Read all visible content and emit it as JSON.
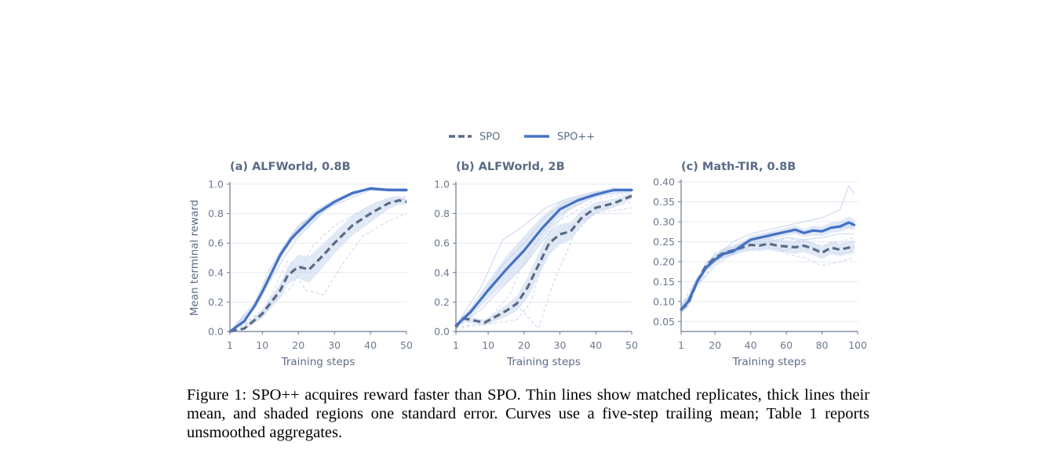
{
  "legend": [
    {
      "name": "SPO",
      "style": "dashed"
    },
    {
      "name": "SPO++",
      "style": "solid"
    }
  ],
  "colors": {
    "spo": "#5b6b85",
    "spopp": "#4472c4",
    "band": "#c9d6ef",
    "replicate": "#c2cfeb",
    "axis": "#6b7a90",
    "grid": "#e6e9ef"
  },
  "caption": {
    "label": "Figure 1:",
    "text": "SPO++ acquires reward faster than SPO. Thin lines show matched replicates, thick lines their mean, and shaded regions one standard error. Curves use a five-step trailing mean; Table 1 reports unsmoothed aggregates."
  },
  "chart_data": [
    {
      "type": "line",
      "title": "(a) ALFWorld, 0.8B",
      "xlabel": "Training steps",
      "ylabel": "Mean terminal reward",
      "xlim": [
        1,
        50
      ],
      "ylim": [
        0,
        1.0
      ],
      "xticks": [
        1,
        10,
        20,
        30,
        40,
        50
      ],
      "yticks": [
        0.0,
        0.2,
        0.4,
        0.6,
        0.8,
        1.0
      ],
      "series": [
        {
          "name": "SPO",
          "style": "dashed",
          "x": [
            1,
            5,
            10,
            15,
            17,
            20,
            23,
            27,
            30,
            35,
            40,
            45,
            48,
            50
          ],
          "y": [
            0.0,
            0.02,
            0.12,
            0.28,
            0.38,
            0.44,
            0.42,
            0.52,
            0.6,
            0.72,
            0.8,
            0.87,
            0.89,
            0.88
          ],
          "se_lower": [
            0.0,
            0.01,
            0.09,
            0.23,
            0.32,
            0.36,
            0.33,
            0.44,
            0.53,
            0.65,
            0.74,
            0.83,
            0.86,
            0.86
          ],
          "se_upper": [
            0.0,
            0.03,
            0.15,
            0.33,
            0.44,
            0.52,
            0.51,
            0.6,
            0.67,
            0.79,
            0.86,
            0.91,
            0.92,
            0.9
          ]
        },
        {
          "name": "SPO++",
          "style": "solid",
          "x": [
            1,
            5,
            8,
            10,
            12,
            15,
            18,
            20,
            25,
            30,
            35,
            40,
            45,
            48,
            50
          ],
          "y": [
            0.0,
            0.07,
            0.18,
            0.27,
            0.37,
            0.52,
            0.63,
            0.68,
            0.8,
            0.88,
            0.94,
            0.97,
            0.96,
            0.96,
            0.96
          ],
          "se_lower": [
            0.0,
            0.06,
            0.16,
            0.24,
            0.34,
            0.49,
            0.6,
            0.65,
            0.77,
            0.86,
            0.93,
            0.96,
            0.95,
            0.95,
            0.95
          ],
          "se_upper": [
            0.0,
            0.08,
            0.2,
            0.3,
            0.4,
            0.55,
            0.66,
            0.71,
            0.83,
            0.9,
            0.95,
            0.98,
            0.97,
            0.97,
            0.97
          ]
        }
      ],
      "replicates": [
        {
          "of": "SPO",
          "x": [
            1,
            10,
            18,
            22,
            27,
            32,
            38,
            45,
            50
          ],
          "y": [
            0.0,
            0.1,
            0.44,
            0.28,
            0.25,
            0.45,
            0.65,
            0.75,
            0.8
          ]
        },
        {
          "of": "SPO",
          "x": [
            1,
            10,
            18,
            24,
            30,
            36,
            42,
            50
          ],
          "y": [
            0.0,
            0.14,
            0.3,
            0.58,
            0.72,
            0.8,
            0.88,
            0.9
          ]
        },
        {
          "of": "SPO",
          "x": [
            1,
            10,
            17,
            22,
            30,
            40,
            50
          ],
          "y": [
            0.0,
            0.12,
            0.48,
            0.4,
            0.6,
            0.82,
            0.92
          ]
        },
        {
          "of": "SPO++",
          "x": [
            1,
            8,
            12,
            16,
            20,
            28,
            40,
            50
          ],
          "y": [
            0.0,
            0.2,
            0.42,
            0.58,
            0.72,
            0.86,
            0.97,
            0.97
          ]
        },
        {
          "of": "SPO++",
          "x": [
            1,
            8,
            12,
            16,
            20,
            28,
            40,
            50
          ],
          "y": [
            0.0,
            0.16,
            0.34,
            0.5,
            0.64,
            0.84,
            0.96,
            0.95
          ]
        },
        {
          "of": "SPO++",
          "x": [
            1,
            8,
            12,
            18,
            24,
            32,
            40,
            50
          ],
          "y": [
            0.0,
            0.18,
            0.38,
            0.65,
            0.8,
            0.9,
            0.98,
            0.96
          ]
        }
      ]
    },
    {
      "type": "line",
      "title": "(b) ALFWorld, 2B",
      "xlabel": "Training steps",
      "ylabel": "",
      "xlim": [
        1,
        50
      ],
      "ylim": [
        0,
        1.0
      ],
      "xticks": [
        1,
        10,
        20,
        30,
        40,
        50
      ],
      "yticks": [
        0.0,
        0.2,
        0.4,
        0.6,
        0.8,
        1.0
      ],
      "series": [
        {
          "name": "SPO",
          "style": "dashed",
          "x": [
            1,
            3,
            5,
            7,
            9,
            12,
            15,
            18,
            21,
            24,
            27,
            30,
            33,
            36,
            40,
            45,
            50
          ],
          "y": [
            0.03,
            0.09,
            0.08,
            0.07,
            0.06,
            0.1,
            0.14,
            0.19,
            0.3,
            0.45,
            0.6,
            0.66,
            0.68,
            0.77,
            0.84,
            0.87,
            0.92
          ],
          "se_lower": [
            0.02,
            0.07,
            0.06,
            0.05,
            0.04,
            0.07,
            0.1,
            0.14,
            0.23,
            0.37,
            0.52,
            0.59,
            0.62,
            0.72,
            0.8,
            0.84,
            0.9
          ],
          "se_upper": [
            0.04,
            0.11,
            0.1,
            0.09,
            0.08,
            0.13,
            0.18,
            0.24,
            0.37,
            0.53,
            0.68,
            0.73,
            0.74,
            0.82,
            0.88,
            0.9,
            0.94
          ]
        },
        {
          "name": "SPO++",
          "style": "solid",
          "x": [
            1,
            5,
            10,
            15,
            20,
            25,
            30,
            35,
            40,
            45,
            50
          ],
          "y": [
            0.04,
            0.13,
            0.28,
            0.42,
            0.55,
            0.7,
            0.83,
            0.89,
            0.93,
            0.96,
            0.96
          ],
          "se_lower": [
            0.03,
            0.1,
            0.22,
            0.33,
            0.45,
            0.62,
            0.78,
            0.86,
            0.91,
            0.94,
            0.95
          ],
          "se_upper": [
            0.05,
            0.16,
            0.34,
            0.51,
            0.65,
            0.78,
            0.88,
            0.92,
            0.95,
            0.98,
            0.97
          ]
        }
      ],
      "replicates": [
        {
          "of": "SPO",
          "x": [
            1,
            10,
            18,
            22,
            26,
            30,
            35,
            40,
            50
          ],
          "y": [
            0.02,
            0.05,
            0.08,
            0.2,
            0.55,
            0.68,
            0.74,
            0.8,
            0.84
          ]
        },
        {
          "of": "SPO",
          "x": [
            1,
            10,
            18,
            24,
            28,
            34,
            40,
            50
          ],
          "y": [
            0.03,
            0.06,
            0.18,
            0.02,
            0.32,
            0.66,
            0.82,
            0.88
          ]
        },
        {
          "of": "SPO",
          "x": [
            1,
            10,
            16,
            20,
            26,
            32,
            40,
            50
          ],
          "y": [
            0.05,
            0.08,
            0.25,
            0.48,
            0.7,
            0.78,
            0.9,
            0.94
          ]
        },
        {
          "of": "SPO++",
          "x": [
            1,
            8,
            14,
            20,
            26,
            32,
            40,
            50
          ],
          "y": [
            0.04,
            0.3,
            0.62,
            0.72,
            0.84,
            0.9,
            0.95,
            0.97
          ]
        },
        {
          "of": "SPO++",
          "x": [
            1,
            8,
            14,
            20,
            26,
            32,
            40,
            50
          ],
          "y": [
            0.03,
            0.15,
            0.3,
            0.45,
            0.64,
            0.82,
            0.92,
            0.95
          ]
        },
        {
          "of": "SPO++",
          "x": [
            1,
            8,
            14,
            20,
            26,
            32,
            40,
            50
          ],
          "y": [
            0.05,
            0.22,
            0.45,
            0.6,
            0.78,
            0.88,
            0.94,
            0.96
          ]
        }
      ]
    },
    {
      "type": "line",
      "title": "(c) Math-TIR, 0.8B",
      "xlabel": "Training steps",
      "ylabel": "",
      "xlim": [
        1,
        100
      ],
      "ylim": [
        0.025,
        0.4
      ],
      "xticks": [
        1,
        20,
        40,
        60,
        80,
        100
      ],
      "yticks": [
        0.05,
        0.1,
        0.15,
        0.2,
        0.25,
        0.3,
        0.35,
        0.4
      ],
      "series": [
        {
          "name": "SPO",
          "style": "dashed",
          "x": [
            1,
            5,
            10,
            15,
            20,
            25,
            30,
            35,
            40,
            45,
            50,
            55,
            60,
            65,
            70,
            75,
            80,
            85,
            90,
            95,
            98
          ],
          "y": [
            0.08,
            0.095,
            0.15,
            0.19,
            0.21,
            0.222,
            0.228,
            0.235,
            0.242,
            0.24,
            0.245,
            0.24,
            0.238,
            0.236,
            0.24,
            0.232,
            0.222,
            0.235,
            0.23,
            0.235,
            0.237
          ],
          "se_lower": [
            0.07,
            0.085,
            0.14,
            0.18,
            0.2,
            0.21,
            0.215,
            0.222,
            0.228,
            0.226,
            0.23,
            0.225,
            0.222,
            0.22,
            0.224,
            0.216,
            0.206,
            0.219,
            0.214,
            0.219,
            0.221
          ],
          "se_upper": [
            0.09,
            0.105,
            0.16,
            0.2,
            0.22,
            0.234,
            0.241,
            0.248,
            0.256,
            0.254,
            0.26,
            0.255,
            0.254,
            0.252,
            0.256,
            0.248,
            0.238,
            0.251,
            0.246,
            0.251,
            0.253
          ]
        },
        {
          "name": "SPO++",
          "style": "solid",
          "x": [
            1,
            5,
            10,
            15,
            20,
            25,
            30,
            35,
            40,
            45,
            50,
            55,
            60,
            65,
            70,
            75,
            80,
            85,
            90,
            95,
            98
          ],
          "y": [
            0.08,
            0.1,
            0.15,
            0.185,
            0.205,
            0.22,
            0.225,
            0.24,
            0.255,
            0.26,
            0.265,
            0.27,
            0.275,
            0.28,
            0.272,
            0.278,
            0.276,
            0.285,
            0.288,
            0.298,
            0.292
          ],
          "se_lower": [
            0.07,
            0.09,
            0.14,
            0.175,
            0.195,
            0.21,
            0.215,
            0.23,
            0.245,
            0.25,
            0.255,
            0.26,
            0.265,
            0.27,
            0.262,
            0.266,
            0.264,
            0.272,
            0.275,
            0.283,
            0.278
          ],
          "se_upper": [
            0.09,
            0.11,
            0.16,
            0.195,
            0.215,
            0.23,
            0.235,
            0.25,
            0.265,
            0.27,
            0.275,
            0.28,
            0.285,
            0.29,
            0.282,
            0.29,
            0.288,
            0.298,
            0.301,
            0.313,
            0.306
          ]
        }
      ],
      "replicates": [
        {
          "of": "SPO",
          "x": [
            1,
            10,
            20,
            30,
            40,
            50,
            60,
            70,
            80,
            90,
            98
          ],
          "y": [
            0.08,
            0.14,
            0.2,
            0.22,
            0.24,
            0.25,
            0.22,
            0.21,
            0.19,
            0.2,
            0.21
          ]
        },
        {
          "of": "SPO",
          "x": [
            1,
            10,
            20,
            30,
            40,
            50,
            60,
            70,
            80,
            90,
            98
          ],
          "y": [
            0.09,
            0.16,
            0.22,
            0.24,
            0.25,
            0.24,
            0.26,
            0.25,
            0.24,
            0.25,
            0.26
          ]
        },
        {
          "of": "SPO",
          "x": [
            1,
            10,
            20,
            30,
            40,
            50,
            60,
            70,
            80,
            90,
            98
          ],
          "y": [
            0.07,
            0.15,
            0.21,
            0.23,
            0.23,
            0.235,
            0.23,
            0.24,
            0.23,
            0.22,
            0.23
          ]
        },
        {
          "of": "SPO++",
          "x": [
            1,
            10,
            20,
            30,
            40,
            50,
            60,
            70,
            80,
            90,
            95,
            98
          ],
          "y": [
            0.08,
            0.15,
            0.21,
            0.25,
            0.27,
            0.28,
            0.29,
            0.3,
            0.31,
            0.33,
            0.39,
            0.37
          ]
        },
        {
          "of": "SPO++",
          "x": [
            1,
            10,
            20,
            30,
            40,
            50,
            60,
            70,
            80,
            90,
            98
          ],
          "y": [
            0.09,
            0.14,
            0.19,
            0.22,
            0.24,
            0.25,
            0.26,
            0.255,
            0.26,
            0.27,
            0.27
          ]
        },
        {
          "of": "SPO++",
          "x": [
            1,
            10,
            20,
            30,
            40,
            50,
            60,
            70,
            80,
            90,
            98
          ],
          "y": [
            0.07,
            0.16,
            0.2,
            0.23,
            0.25,
            0.27,
            0.275,
            0.27,
            0.28,
            0.285,
            0.29
          ]
        }
      ]
    }
  ]
}
